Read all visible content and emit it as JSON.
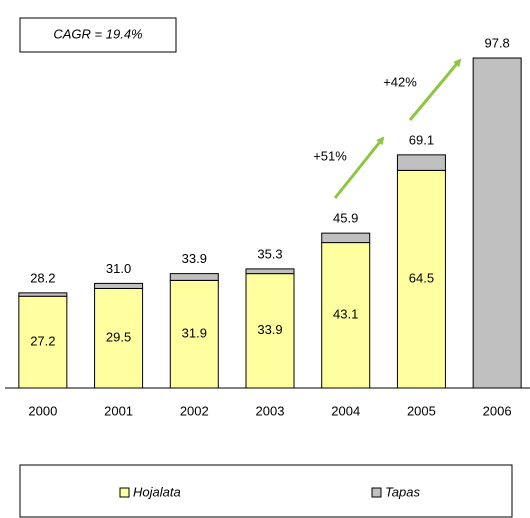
{
  "chart_data": {
    "type": "stacked_bar",
    "title": "CAGR = 19.4%",
    "categories": [
      "2000",
      "2001",
      "2002",
      "2003",
      "2004",
      "2005",
      "2006"
    ],
    "series": [
      {
        "name": "Hojalata",
        "color": "#ffffa0",
        "values": [
          27.2,
          29.5,
          31.9,
          33.9,
          43.1,
          64.5,
          null
        ]
      },
      {
        "name": "Tapas",
        "color": "#c0c0c0",
        "values": [
          1.0,
          1.5,
          2.0,
          1.4,
          2.8,
          4.6,
          97.8
        ]
      }
    ],
    "totals": [
      28.2,
      31,
      33.9,
      35.3,
      45.9,
      69.1,
      97.8
    ],
    "total_labels": [
      "28.2",
      "31.0",
      "33.9",
      "35.3",
      "45.9",
      "69.1",
      "97.8"
    ],
    "annotations": [
      "+51%",
      "+42%"
    ],
    "legend": "bottom"
  }
}
